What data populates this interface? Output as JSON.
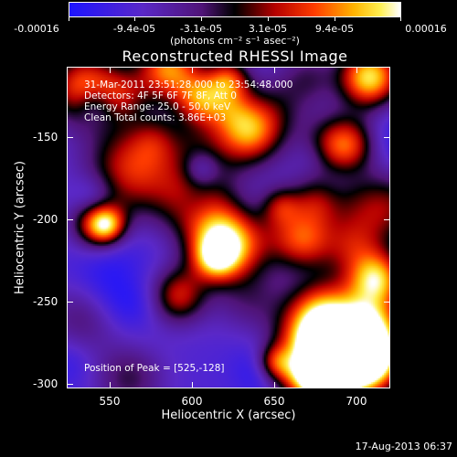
{
  "colorbar": {
    "labels": [
      "-0.00016",
      "-9.4e-05",
      "-3.1e-05",
      "3.1e-05",
      "9.4e-05",
      "0.00016"
    ],
    "units": "(photons cm⁻² s⁻¹ asec⁻²)"
  },
  "title": "Reconstructed RHESSI Image",
  "info": {
    "time": "31-Mar-2011 23:51:28.000 to 23:54:48.000",
    "detectors": "Detectors: 4F 5F 6F 7F 8F, Att 0",
    "energy": "Energy Range: 25.0 - 50.0 keV",
    "method": "Clean     Total counts: 3.86E+03",
    "peak": "Position of Peak = [525,-128]"
  },
  "axes": {
    "xlabel": "Heliocentric X (arcsec)",
    "ylabel": "Heliocentric Y (arcsec)",
    "xticks": [
      "550",
      "600",
      "650",
      "700"
    ],
    "yticks": [
      "-150",
      "-200",
      "-250",
      "-300"
    ],
    "xrange": [
      525,
      720
    ],
    "yrange": [
      -303,
      -108
    ]
  },
  "timestamp": "17-Aug-2013 06:37",
  "colors": {
    "frame": "#ffffff",
    "background": "#000000"
  }
}
